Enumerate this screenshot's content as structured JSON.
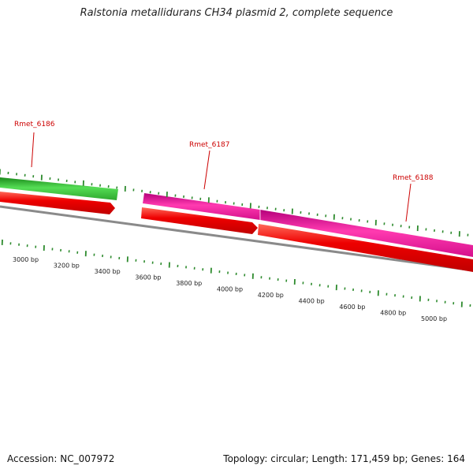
{
  "title": "Ralstonia metallidurans CH34 plasmid 2, complete sequence",
  "footer": {
    "accession": "Accession: NC_007972",
    "summary": "Topology: circular; Length: 171,459 bp; Genes: 164"
  },
  "colors": {
    "label": "#cc0000",
    "tick": "#2e8b2e",
    "gene_green": "#3fc83f",
    "gene_magenta": "#ee1b9a",
    "cds_red": "#ee0000",
    "backbone": "#808080"
  },
  "genes": [
    {
      "label": "Rmet_6186",
      "color": "green",
      "strand": "+"
    },
    {
      "label": "Rmet_6187",
      "color": "magenta",
      "strand": "+"
    },
    {
      "label": "Rmet_6188",
      "color": "magenta",
      "strand": "+"
    }
  ],
  "coordinate_labels": [
    "3000 bp",
    "3200 bp",
    "3400 bp",
    "3600 bp",
    "3800 bp",
    "4000 bp",
    "4200 bp",
    "4400 bp",
    "4600 bp",
    "4800 bp",
    "5000 bp"
  ]
}
